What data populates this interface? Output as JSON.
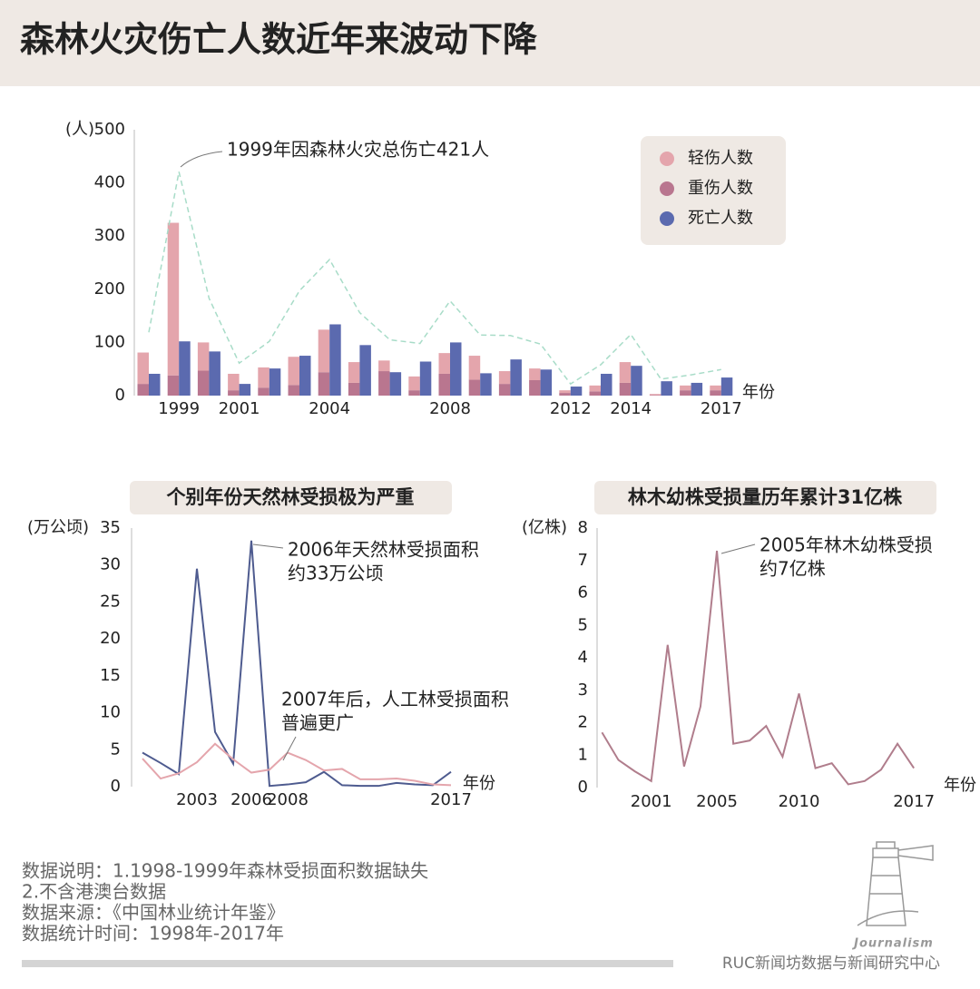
{
  "chart_data": [
    {
      "type": "bar",
      "title": "森林火灾伤亡人数近年来波动下降",
      "y_label": "(人)",
      "x_label": "年份",
      "annotation": "1999年因森林火灾总伤亡421人",
      "categories": [
        null,
        "1999",
        null,
        "2001",
        null,
        null,
        "2004",
        null,
        null,
        null,
        "2008",
        null,
        null,
        null,
        "2012",
        null,
        "2014",
        null,
        null,
        "2017"
      ],
      "series": [
        {
          "name": "轻伤人数",
          "color": "#e4a5ac",
          "values": [
            59,
            287,
            53,
            31,
            38,
            53,
            80,
            39,
            20,
            26,
            39,
            45,
            24,
            22,
            5,
            11,
            39,
            2,
            9,
            9
          ]
        },
        {
          "name": "重伤人数",
          "color": "#b9768f",
          "values": [
            22,
            38,
            47,
            10,
            15,
            20,
            44,
            24,
            46,
            10,
            41,
            30,
            22,
            29,
            5,
            8,
            24,
            1,
            10,
            10
          ]
        },
        {
          "name": "死亡人数",
          "color": "#5b6aaf",
          "values": [
            41,
            102,
            83,
            22,
            51,
            75,
            134,
            95,
            44,
            64,
            100,
            42,
            68,
            49,
            17,
            41,
            56,
            27,
            24,
            34
          ]
        }
      ],
      "line": {
        "color": "#a8dcc8",
        "dashed": true,
        "values": [
          119,
          421,
          183,
          61,
          102,
          197,
          256,
          156,
          105,
          98,
          178,
          114,
          113,
          97,
          22,
          58,
          115,
          31,
          39,
          49
        ]
      },
      "ylim": [
        0,
        500
      ],
      "yticks": [
        0,
        100,
        200,
        300,
        400,
        500
      ],
      "legend": "top-right"
    },
    {
      "type": "line",
      "title": "个别年份天然林受损极为严重",
      "y_label": "(万公顷)",
      "x_label": "年份",
      "x": [
        2000,
        2001,
        2002,
        2003,
        2004,
        2005,
        2006,
        2007,
        2008,
        2009,
        2010,
        2011,
        2012,
        2013,
        2014,
        2015,
        2016,
        2017
      ],
      "series": [
        {
          "color": "#4e5b8f",
          "values": [
            4.6,
            3.2,
            1.7,
            29.5,
            7.4,
            3.1,
            33.3,
            0.1,
            0.3,
            0.6,
            2.0,
            0.2,
            0.1,
            0.1,
            0.5,
            0.3,
            0.2,
            2.0
          ]
        },
        {
          "color": "#e4a5ac",
          "values": [
            3.8,
            1.1,
            1.8,
            3.3,
            5.8,
            3.7,
            1.9,
            2.3,
            4.6,
            3.6,
            2.2,
            2.4,
            1.0,
            1.0,
            1.1,
            0.8,
            0.3,
            0.2
          ]
        }
      ],
      "annotations": [
        [
          "2006年天然林受损面积",
          "约33万公顷"
        ],
        [
          "2007年后，人工林受损面积",
          "普遍更广"
        ]
      ],
      "xlim": [
        1999.4,
        2017.6
      ],
      "xticks": [
        2003,
        2006,
        2008,
        2017
      ],
      "ylim": [
        0,
        35
      ],
      "yticks": [
        0,
        5,
        10,
        15,
        20,
        25,
        30,
        35
      ]
    },
    {
      "type": "line",
      "title": "林木幼株受损量历年累计31亿株",
      "y_label": "(亿株)",
      "x_label": "年份",
      "x": [
        1998,
        1999,
        2000,
        2001,
        2002,
        2003,
        2004,
        2005,
        2006,
        2007,
        2008,
        2009,
        2010,
        2011,
        2012,
        2013,
        2014,
        2015,
        2016,
        2017
      ],
      "series": [
        {
          "color": "#b07d8c",
          "values": [
            1.7,
            0.85,
            0.5,
            0.2,
            4.4,
            0.65,
            2.5,
            7.3,
            1.35,
            1.45,
            1.9,
            0.95,
            2.9,
            0.6,
            0.75,
            0.1,
            0.2,
            0.55,
            1.35,
            0.6
          ]
        }
      ],
      "annotations": [
        [
          "2005年林木幼株受损",
          "约7亿株"
        ]
      ],
      "xlim": [
        1997.7,
        2017.6
      ],
      "xticks": [
        2001,
        2005,
        2010,
        2017
      ],
      "ylim": [
        0,
        8
      ],
      "yticks": [
        0,
        1,
        2,
        3,
        4,
        5,
        6,
        7,
        8
      ]
    }
  ],
  "notes": [
    "数据说明：1.1998-1999年森林受损面积数据缺失",
    "2.不含港澳台数据",
    "数据来源：《中国林业统计年鉴》",
    "数据统计时间：1998年-2017年"
  ],
  "logo_text": "Journalism",
  "credit": "RUC新闻坊数据与新闻研究中心"
}
